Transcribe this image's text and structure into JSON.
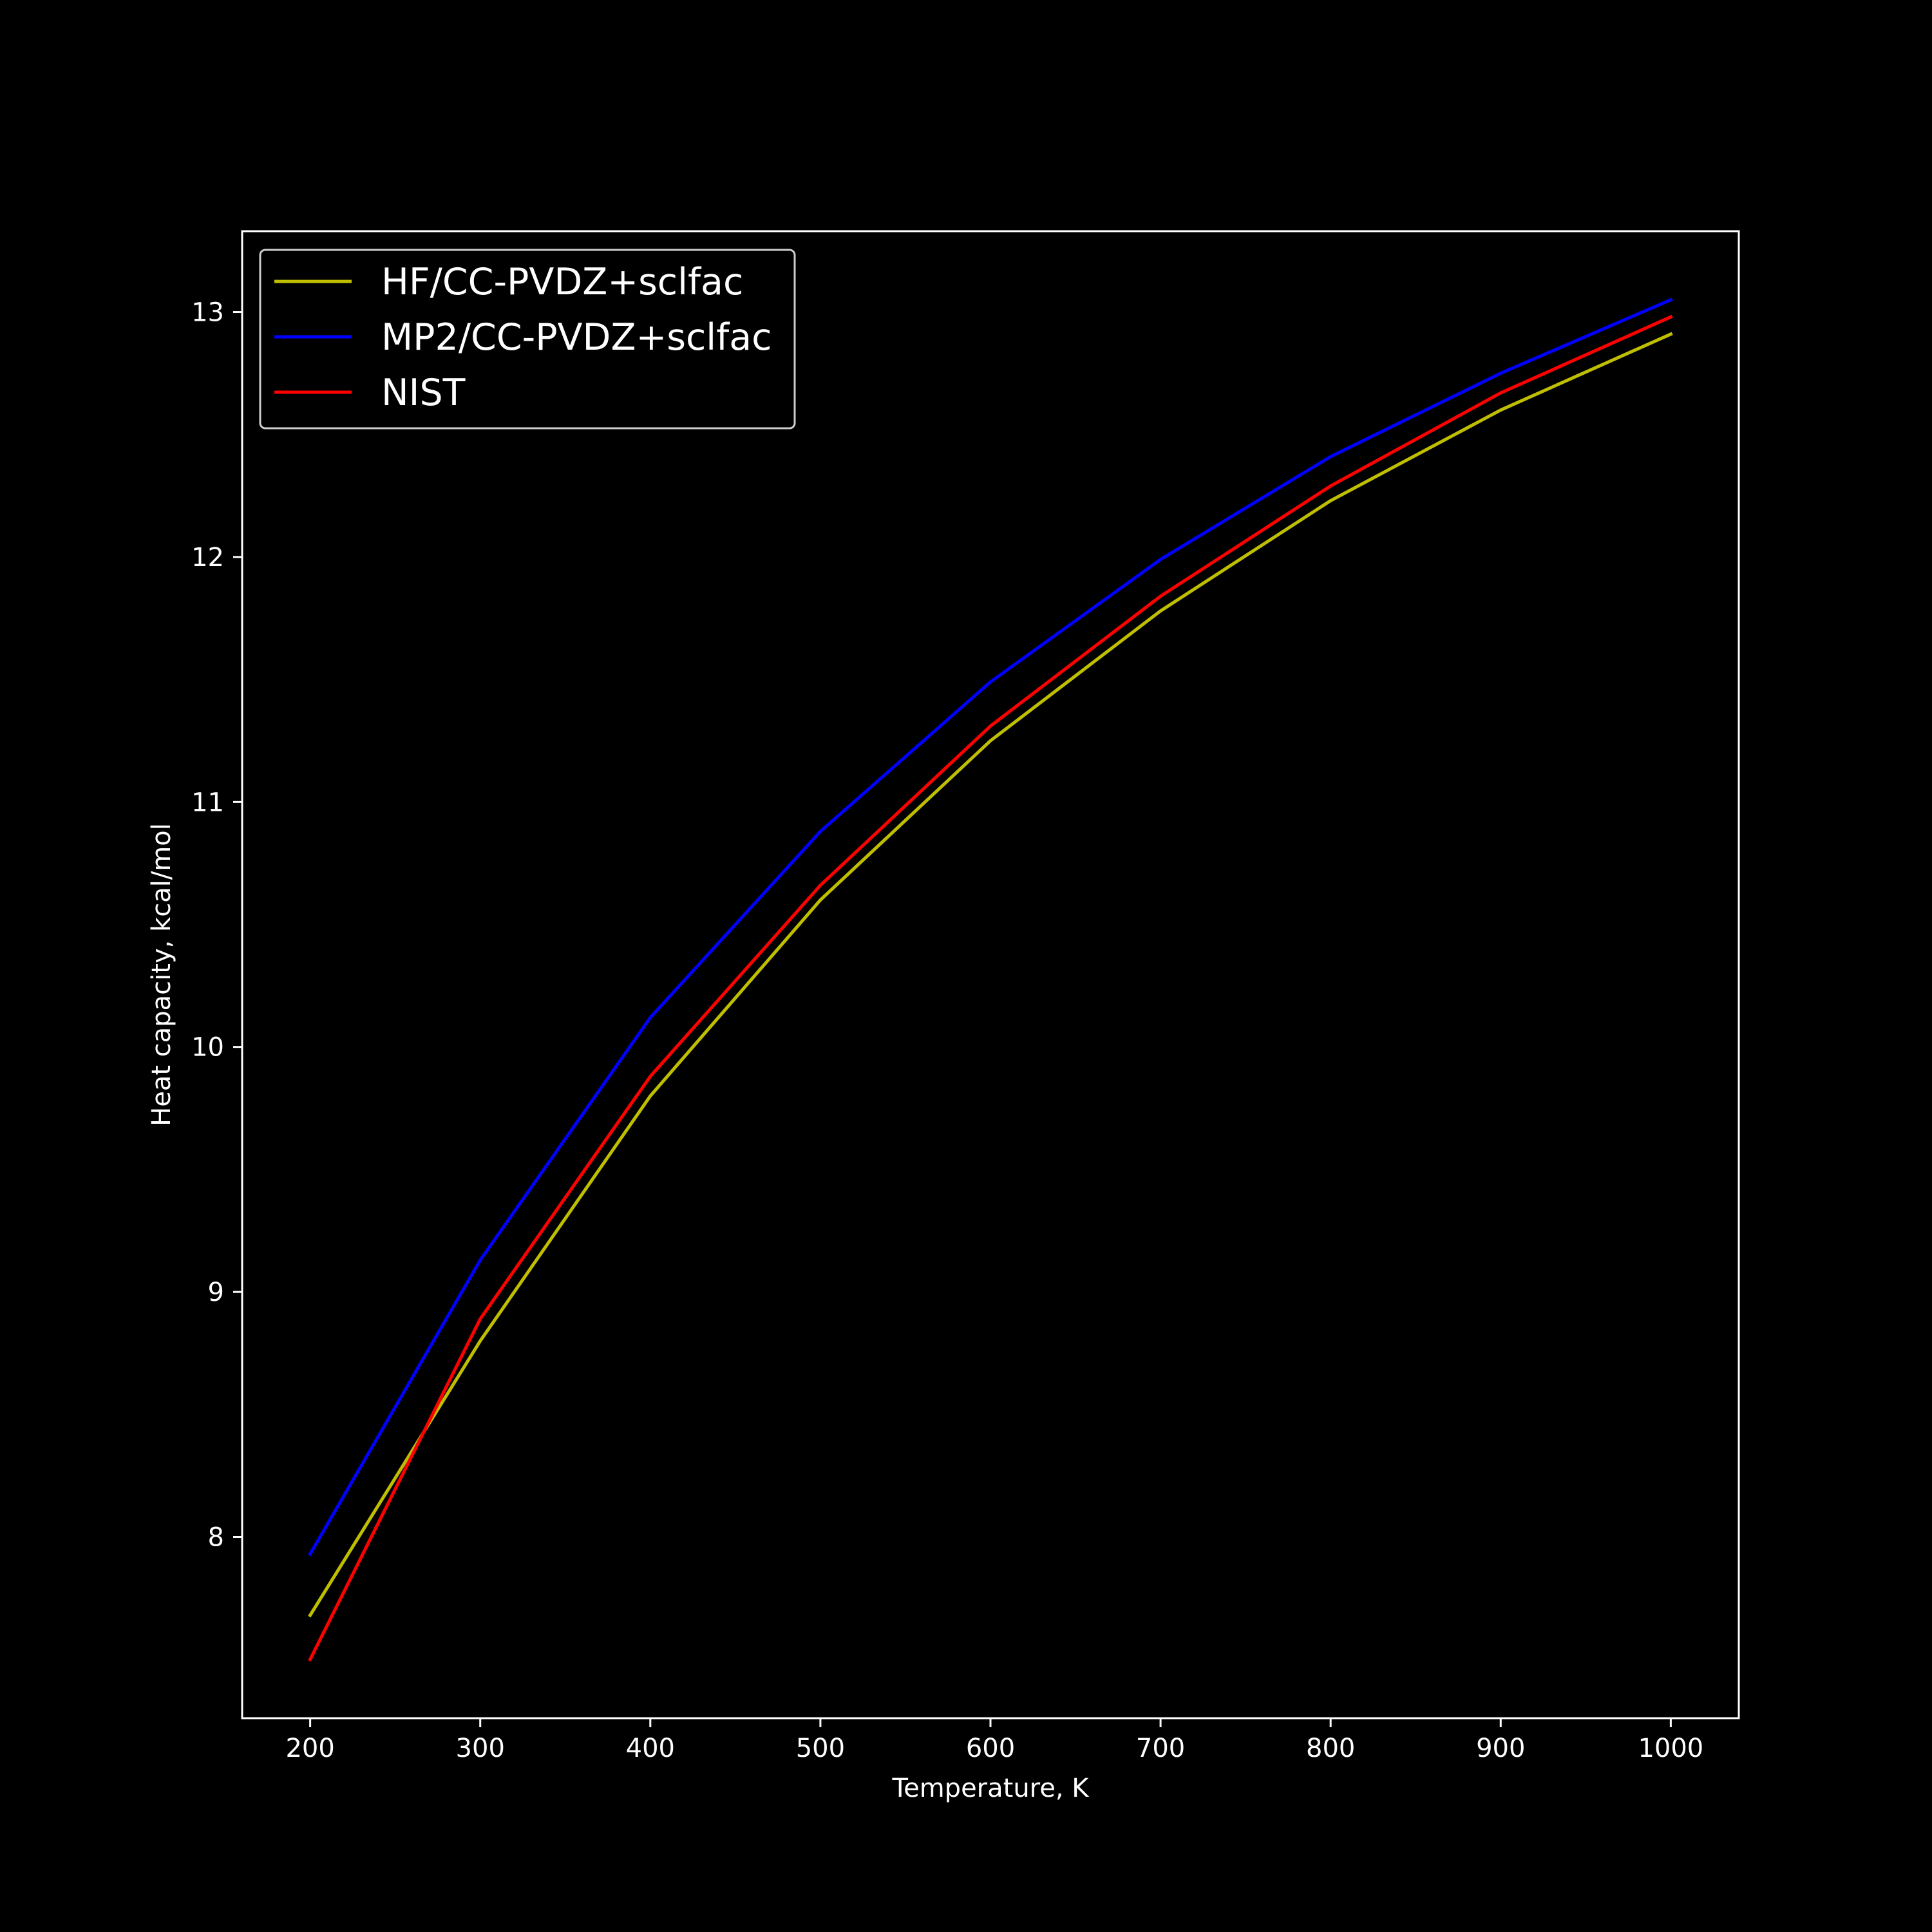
{
  "chart_data": {
    "type": "line",
    "title": "",
    "xlabel": "Temperature, K",
    "ylabel": "Heat capacity, kcal/mol",
    "xlim": [
      160,
      1040
    ],
    "ylim": [
      7.26,
      13.33
    ],
    "xticks": [
      200,
      300,
      400,
      500,
      600,
      700,
      800,
      900,
      1000
    ],
    "yticks": [
      8,
      9,
      10,
      11,
      12,
      13
    ],
    "grid": false,
    "legend_position": "top-left",
    "x": [
      200,
      300,
      400,
      500,
      600,
      700,
      800,
      900,
      1000
    ],
    "series": [
      {
        "name": "HF/CC-PVDZ+sclfac",
        "color": "#bfbf00",
        "values": [
          7.68,
          8.8,
          9.8,
          10.6,
          11.25,
          11.78,
          12.23,
          12.6,
          12.91
        ]
      },
      {
        "name": "MP2/CC-PVDZ+sclfac",
        "color": "#0000ff",
        "values": [
          7.93,
          9.13,
          10.12,
          10.88,
          11.49,
          11.99,
          12.41,
          12.75,
          13.05
        ]
      },
      {
        "name": "NIST",
        "color": "#ff0000",
        "values": [
          7.5,
          8.89,
          9.88,
          10.66,
          11.31,
          11.84,
          12.29,
          12.67,
          12.98
        ]
      }
    ]
  }
}
